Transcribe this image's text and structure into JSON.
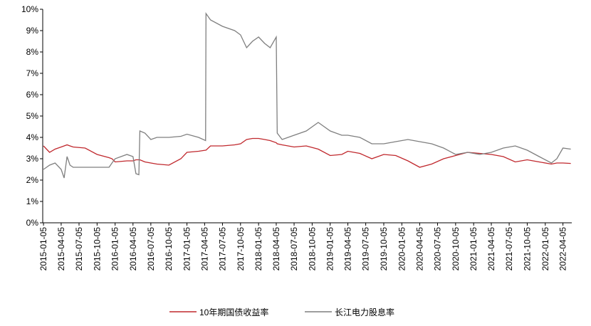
{
  "chart_data": {
    "type": "line",
    "x": [
      "2015-01-05",
      "2015-02-05",
      "2015-03-05",
      "2015-04-05",
      "2015-04-20",
      "2015-05-05",
      "2015-05-20",
      "2015-06-05",
      "2015-08-05",
      "2015-10-05",
      "2015-12-05",
      "2015-12-20",
      "2016-01-05",
      "2016-03-05",
      "2016-04-05",
      "2016-04-20",
      "2016-05-05",
      "2016-05-10",
      "2016-06-05",
      "2016-07-05",
      "2016-08-05",
      "2016-10-05",
      "2016-12-05",
      "2017-01-05",
      "2017-03-05",
      "2017-04-10",
      "2017-04-12",
      "2017-05-05",
      "2017-07-05",
      "2017-09-05",
      "2017-10-05",
      "2017-11-05",
      "2017-12-05",
      "2018-01-05",
      "2018-02-05",
      "2018-03-05",
      "2018-04-05",
      "2018-04-10",
      "2018-05-05",
      "2018-07-05",
      "2018-09-05",
      "2018-11-05",
      "2019-01-05",
      "2019-03-05",
      "2019-04-05",
      "2019-06-05",
      "2019-08-05",
      "2019-10-05",
      "2019-12-05",
      "2020-02-05",
      "2020-04-05",
      "2020-06-05",
      "2020-08-05",
      "2020-10-05",
      "2020-12-05",
      "2021-02-05",
      "2021-04-05",
      "2021-06-05",
      "2021-08-05",
      "2021-10-05",
      "2021-12-05",
      "2022-02-05",
      "2022-03-05",
      "2022-04-05",
      "2022-05-15"
    ],
    "series": [
      {
        "name": "10年期国债收益率",
        "color": "#c0282d",
        "values": [
          3.6,
          3.3,
          3.45,
          3.55,
          3.6,
          3.65,
          3.6,
          3.55,
          3.5,
          3.2,
          3.05,
          3.0,
          2.85,
          2.9,
          2.9,
          2.95,
          2.95,
          2.95,
          2.85,
          2.8,
          2.75,
          2.7,
          3.0,
          3.3,
          3.35,
          3.4,
          3.4,
          3.6,
          3.6,
          3.65,
          3.7,
          3.9,
          3.95,
          3.95,
          3.9,
          3.85,
          3.75,
          3.7,
          3.65,
          3.55,
          3.6,
          3.45,
          3.15,
          3.2,
          3.35,
          3.25,
          3.0,
          3.2,
          3.15,
          2.9,
          2.6,
          2.75,
          3.0,
          3.15,
          3.3,
          3.25,
          3.2,
          3.1,
          2.85,
          2.95,
          2.85,
          2.75,
          2.8,
          2.8,
          2.78
        ]
      },
      {
        "name": "长江电力股息率",
        "color": "#7f7f7f",
        "values": [
          2.5,
          2.7,
          2.8,
          2.5,
          2.1,
          3.1,
          2.7,
          2.6,
          2.6,
          2.6,
          2.6,
          2.8,
          3.0,
          3.2,
          3.1,
          2.3,
          2.25,
          4.3,
          4.2,
          3.9,
          4.0,
          4.0,
          4.05,
          4.15,
          4.0,
          3.85,
          9.8,
          9.5,
          9.2,
          9.0,
          8.8,
          8.2,
          8.5,
          8.7,
          8.4,
          8.2,
          8.7,
          4.2,
          3.9,
          4.1,
          4.3,
          4.7,
          4.3,
          4.1,
          4.1,
          4.0,
          3.7,
          3.7,
          3.8,
          3.9,
          3.8,
          3.7,
          3.5,
          3.2,
          3.3,
          3.2,
          3.3,
          3.5,
          3.6,
          3.4,
          3.1,
          2.8,
          3.0,
          3.5,
          3.45
        ]
      }
    ],
    "xlim": [
      "2015-01-01",
      "2022-05-20"
    ],
    "xticks": [
      "2015-01-05",
      "2015-04-05",
      "2015-07-05",
      "2015-10-05",
      "2016-01-05",
      "2016-04-05",
      "2016-07-05",
      "2016-10-05",
      "2017-01-05",
      "2017-04-05",
      "2017-07-05",
      "2017-10-05",
      "2018-01-05",
      "2018-04-05",
      "2018-07-05",
      "2018-10-05",
      "2019-01-05",
      "2019-04-05",
      "2019-07-05",
      "2019-10-05",
      "2020-01-05",
      "2020-04-05",
      "2020-07-05",
      "2020-10-05",
      "2021-01-05",
      "2021-04-05",
      "2021-07-05",
      "2021-10-05",
      "2022-01-05",
      "2022-04-05"
    ],
    "ylim": [
      0,
      10
    ],
    "yticks": [
      {
        "value": 0,
        "label": "0%"
      },
      {
        "value": 1,
        "label": "1%"
      },
      {
        "value": 2,
        "label": "2%"
      },
      {
        "value": 3,
        "label": "3%"
      },
      {
        "value": 4,
        "label": "4%"
      },
      {
        "value": 5,
        "label": "5%"
      },
      {
        "value": 6,
        "label": "6%"
      },
      {
        "value": 7,
        "label": "7%"
      },
      {
        "value": 8,
        "label": "8%"
      },
      {
        "value": 9,
        "label": "9%"
      },
      {
        "value": 10,
        "label": "10%"
      }
    ],
    "legend": "bottom"
  }
}
